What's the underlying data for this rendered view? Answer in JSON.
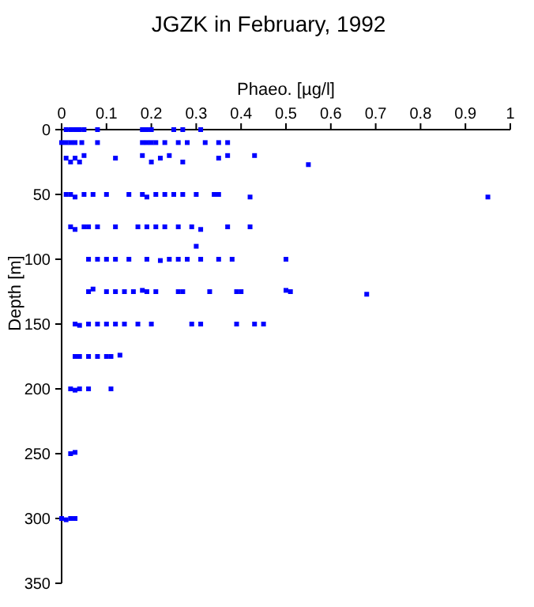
{
  "chart_data": {
    "type": "scatter",
    "title": "JGZK in February, 1992",
    "xlabel": "Phaeo. [µg/l]",
    "ylabel": "Depth [m]",
    "xlim": [
      0,
      1
    ],
    "xticks": [
      0,
      0.1,
      0.2,
      0.3,
      0.4,
      0.5,
      0.6,
      0.7,
      0.8,
      0.9,
      1
    ],
    "ylim": [
      350,
      0
    ],
    "yticks": [
      0,
      50,
      100,
      150,
      200,
      250,
      300,
      350
    ],
    "marker": "square",
    "grid": false,
    "series": [
      {
        "color": "#0000ff",
        "x": [
          0.01,
          0.02,
          0.03,
          0.04,
          0.05,
          0.08,
          0.18,
          0.19,
          0.2,
          0.25,
          0.27,
          0.31,
          0,
          0.01,
          0.02,
          0.03,
          0.045,
          0.08,
          0.18,
          0.19,
          0.2,
          0.21,
          0.23,
          0.26,
          0.28,
          0.32,
          0.35,
          0.37,
          0.01,
          0.02,
          0.03,
          0.04,
          0.05,
          0.12,
          0.18,
          0.2,
          0.22,
          0.24,
          0.27,
          0.35,
          0.37,
          0.43,
          0.55,
          0.01,
          0.02,
          0.03,
          0.05,
          0.07,
          0.1,
          0.15,
          0.18,
          0.19,
          0.21,
          0.23,
          0.25,
          0.27,
          0.3,
          0.34,
          0.35,
          0.42,
          0.95,
          0.02,
          0.03,
          0.05,
          0.06,
          0.08,
          0.12,
          0.17,
          0.19,
          0.21,
          0.23,
          0.26,
          0.29,
          0.31,
          0.37,
          0.42,
          0.3,
          0.06,
          0.08,
          0.1,
          0.12,
          0.15,
          0.19,
          0.22,
          0.24,
          0.26,
          0.28,
          0.31,
          0.35,
          0.38,
          0.5,
          0.06,
          0.07,
          0.1,
          0.12,
          0.14,
          0.16,
          0.18,
          0.19,
          0.21,
          0.26,
          0.27,
          0.33,
          0.39,
          0.4,
          0.5,
          0.51,
          0.68,
          0.03,
          0.04,
          0.06,
          0.08,
          0.1,
          0.12,
          0.14,
          0.17,
          0.2,
          0.29,
          0.31,
          0.39,
          0.43,
          0.45,
          0.03,
          0.04,
          0.06,
          0.08,
          0.1,
          0.11,
          0.13,
          0.02,
          0.03,
          0.04,
          0.06,
          0.11,
          0.02,
          0.03,
          0,
          0.01,
          0.02,
          0.03
        ],
        "values": [
          0,
          0,
          0,
          0,
          0,
          0,
          0,
          0,
          0,
          0,
          0,
          0,
          10,
          10,
          10,
          10,
          10,
          10,
          10,
          10,
          10,
          10,
          10,
          10,
          10,
          10,
          10,
          10,
          22,
          25,
          22,
          25,
          20,
          22,
          20,
          25,
          22,
          20,
          25,
          22,
          20,
          20,
          27,
          50,
          50,
          52,
          50,
          50,
          50,
          50,
          50,
          52,
          50,
          50,
          50,
          50,
          50,
          50,
          50,
          52,
          52,
          75,
          77,
          75,
          75,
          75,
          75,
          75,
          75,
          75,
          75,
          75,
          75,
          77,
          75,
          75,
          90,
          100,
          100,
          100,
          100,
          100,
          100,
          101,
          100,
          100,
          100,
          100,
          100,
          100,
          100,
          125,
          123,
          125,
          125,
          125,
          125,
          124,
          125,
          125,
          125,
          125,
          125,
          125,
          125,
          124,
          125,
          127,
          150,
          151,
          150,
          150,
          150,
          150,
          150,
          150,
          150,
          150,
          150,
          150,
          150,
          150,
          175,
          175,
          175,
          175,
          175,
          175,
          174,
          200,
          201,
          200,
          200,
          200,
          250,
          249,
          300,
          301,
          300,
          300
        ]
      }
    ]
  }
}
